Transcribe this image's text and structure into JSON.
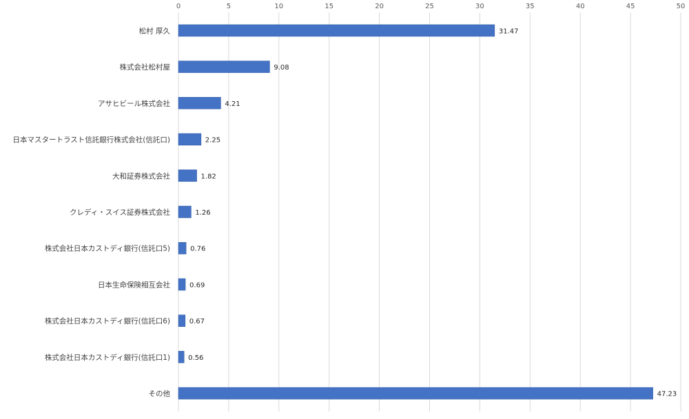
{
  "chart_data": {
    "type": "bar",
    "orientation": "horizontal",
    "categories": [
      "松村 厚久",
      "株式会社松村屋",
      "アサヒビール株式会社",
      "日本マスタートラスト信託銀行株式会社(信託口)",
      "大和証券株式会社",
      "クレディ・スイス証券株式会社",
      "株式会社日本カストディ銀行(信託口5)",
      "日本生命保険相互会社",
      "株式会社日本カストディ銀行(信託口6)",
      "株式会社日本カストディ銀行(信託口1)",
      "その他"
    ],
    "values": [
      31.47,
      9.08,
      4.21,
      2.25,
      1.82,
      1.26,
      0.76,
      0.69,
      0.67,
      0.56,
      47.23
    ],
    "data_labels": [
      "31.47",
      "9.08",
      "4.21",
      "2.25",
      "1.82",
      "1.26",
      "0.76",
      "0.69",
      "0.67",
      "0.56",
      "47.23"
    ],
    "x_ticks": [
      0,
      5,
      10,
      15,
      20,
      25,
      30,
      35,
      40,
      45,
      50
    ],
    "x_tick_labels": [
      "0",
      "5",
      "10",
      "15",
      "20",
      "25",
      "30",
      "35",
      "40",
      "45",
      "50"
    ],
    "xlim": [
      0,
      50
    ],
    "x_axis_position": "top",
    "grid": true,
    "legend": "none",
    "bar_color": "#4472c4",
    "grid_color": "#d9d9d9",
    "title": "",
    "xlabel": "",
    "ylabel": ""
  }
}
